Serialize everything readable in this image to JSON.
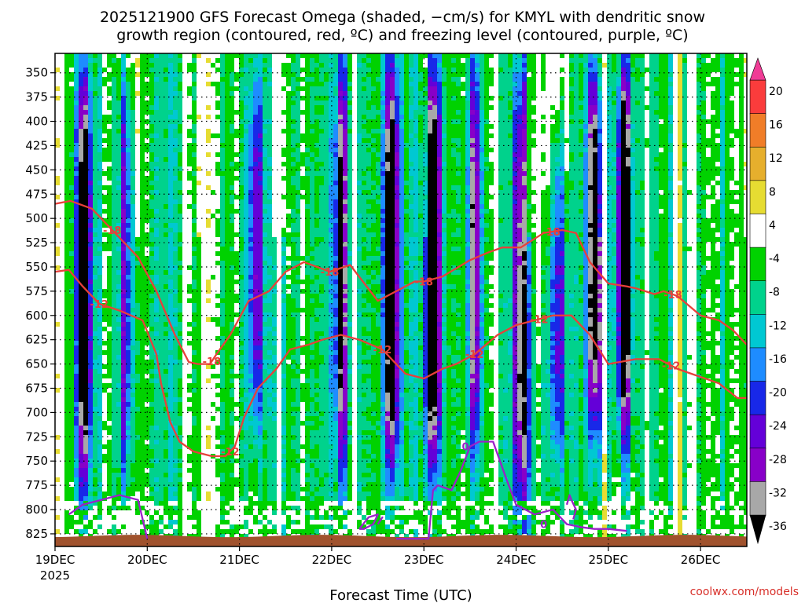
{
  "title": {
    "line1": "2025121900 GFS Forecast Omega (shaded, −cm/s) for KMYL with dendritic snow",
    "line2": "growth region (contoured, red, ºC) and freezing level (contoured, purple, ºC)"
  },
  "xlabel": "Forecast Time (UTC)",
  "credit": "coolwx.com/models",
  "chart_data": {
    "type": "heatmap",
    "title": "2025121900 GFS Forecast Omega (shaded, −cm/s) for KMYL with dendritic snow growth region (contoured, red, ºC) and freezing level (contoured, purple, ºC)",
    "xlabel": "Forecast Time (UTC)",
    "ylabel": "",
    "x_ticks": [
      "19DEC",
      "20DEC",
      "21DEC",
      "22DEC",
      "23DEC",
      "24DEC",
      "25DEC",
      "26DEC"
    ],
    "x_year_label": "2025",
    "x_range_days": [
      0,
      7.5
    ],
    "y_ticks": [
      350,
      375,
      400,
      425,
      450,
      475,
      500,
      525,
      550,
      575,
      600,
      625,
      650,
      675,
      700,
      725,
      750,
      775,
      800,
      825
    ],
    "y_range": [
      330,
      838
    ],
    "grid": true,
    "colorbar": {
      "ticks": [
        20,
        16,
        12,
        8,
        4,
        -4,
        -8,
        -12,
        -16,
        -20,
        -24,
        -28,
        -32,
        -36
      ],
      "levels": [
        -36,
        -32,
        -28,
        -24,
        -20,
        -16,
        -12,
        -8,
        -4,
        4,
        8,
        12,
        16,
        20
      ],
      "colors": [
        "#000000",
        "#a8a8a8",
        "#8800c8",
        "#6400d8",
        "#1828e8",
        "#1e8cff",
        "#00c8d2",
        "#00d28c",
        "#00d200",
        "#ffffff",
        "#e6dc32",
        "#e6af2d",
        "#f07d28",
        "#fa3c3c",
        "#f03c96"
      ]
    },
    "omega_features": [
      {
        "day": 0.32,
        "p_top": 340,
        "p_bot": 790,
        "peak": -38
      },
      {
        "day": 0.78,
        "p_top": 340,
        "p_bot": 800,
        "peak": -26
      },
      {
        "day": 2.18,
        "p_top": 340,
        "p_bot": 730,
        "peak": -24
      },
      {
        "day": 3.1,
        "p_top": 345,
        "p_bot": 760,
        "peak": -26
      },
      {
        "day": 3.65,
        "p_top": 340,
        "p_bot": 760,
        "peak": -37
      },
      {
        "day": 4.1,
        "p_top": 345,
        "p_bot": 760,
        "peak": -38
      },
      {
        "day": 4.55,
        "p_top": 345,
        "p_bot": 740,
        "peak": -24
      },
      {
        "day": 5.05,
        "p_top": 340,
        "p_bot": 820,
        "peak": -34
      },
      {
        "day": 5.45,
        "p_top": 340,
        "p_bot": 760,
        "peak": -24
      },
      {
        "day": 5.85,
        "p_top": 340,
        "p_bot": 730,
        "peak": -36
      },
      {
        "day": 6.17,
        "p_top": 340,
        "p_bot": 730,
        "peak": -37
      }
    ],
    "contours": [
      {
        "name": "-18",
        "color": "#e8403a",
        "label_days": [
          0.62,
          1.7,
          2.98,
          4.0,
          5.38,
          6.7
        ],
        "day": [
          0,
          0.17,
          0.4,
          0.62,
          0.9,
          1.1,
          1.3,
          1.45,
          1.55,
          1.68,
          1.75,
          1.9,
          2.1,
          2.32,
          2.5,
          2.7,
          2.98,
          3.2,
          3.5,
          3.7,
          3.9,
          4.0,
          4.2,
          4.5,
          4.7,
          4.85,
          5.05,
          5.3,
          5.5,
          5.65,
          5.8,
          6.0,
          6.2,
          6.3,
          6.5,
          6.6,
          6.75,
          7.0,
          7.2,
          7.35,
          7.5
        ],
        "pres": [
          485,
          482,
          490,
          512,
          540,
          575,
          620,
          648,
          650,
          650,
          640,
          620,
          585,
          575,
          555,
          545,
          555,
          548,
          585,
          575,
          565,
          565,
          560,
          543,
          535,
          530,
          530,
          515,
          512,
          515,
          545,
          567,
          570,
          572,
          578,
          575,
          580,
          600,
          605,
          615,
          630
        ]
      },
      {
        "name": "-12",
        "color": "#e8403a",
        "label_days": [
          0.48,
          1.9,
          3.55,
          4.55,
          5.25,
          6.68
        ],
        "day": [
          0,
          0.15,
          0.3,
          0.48,
          0.7,
          0.95,
          1.1,
          1.15,
          1.25,
          1.35,
          1.5,
          1.7,
          1.85,
          1.95,
          2.05,
          2.2,
          2.4,
          2.55,
          2.75,
          2.9,
          3.1,
          3.3,
          3.55,
          3.8,
          4.0,
          4.2,
          4.35,
          4.55,
          4.8,
          5.0,
          5.2,
          5.4,
          5.6,
          5.8,
          6.0,
          6.3,
          6.55,
          6.75,
          6.9,
          7.05,
          7.2,
          7.4,
          7.5
        ],
        "pres": [
          555,
          553,
          570,
          588,
          595,
          605,
          640,
          670,
          710,
          730,
          740,
          745,
          745,
          735,
          705,
          675,
          655,
          635,
          630,
          625,
          620,
          625,
          635,
          660,
          665,
          655,
          650,
          640,
          620,
          610,
          605,
          600,
          600,
          620,
          650,
          645,
          645,
          655,
          660,
          665,
          670,
          685,
          685
        ]
      },
      {
        "name": "0",
        "color": "#9a22c8",
        "label_days": [
          4.45,
          5.3
        ],
        "day": [
          0.15,
          0.3,
          0.5,
          0.7,
          0.9,
          1.0
        ],
        "pres": [
          805,
          795,
          790,
          785,
          790,
          830
        ],
        "more": [
          {
            "day": [
              3.3,
              3.4,
              3.5,
              3.45,
              3.35,
              3.3
            ],
            "pres": [
              820,
              808,
              805,
              815,
              820,
              820
            ]
          },
          {
            "day": [
              3.5,
              3.55,
              3.5
            ],
            "pres": [
              815,
              808,
              815
            ]
          },
          {
            "day": [
              3.7,
              4.05,
              4.1,
              4.15,
              4.3,
              4.4,
              4.5,
              4.6,
              4.75,
              4.9,
              5.0,
              5.2,
              5.4,
              5.55,
              5.7,
              5.85,
              6.0,
              6.2
            ],
            "pres": [
              830,
              830,
              780,
              775,
              780,
              760,
              735,
              730,
              730,
              770,
              795,
              805,
              800,
              815,
              818,
              820,
              820,
              822
            ]
          },
          {
            "day": [
              5.55,
              5.58,
              5.6,
              5.65,
              5.62
            ],
            "pres": [
              795,
              785,
              790,
              800,
              810
            ]
          }
        ]
      }
    ],
    "ground": {
      "color": "#a0522d",
      "pres_top": 828
    }
  }
}
